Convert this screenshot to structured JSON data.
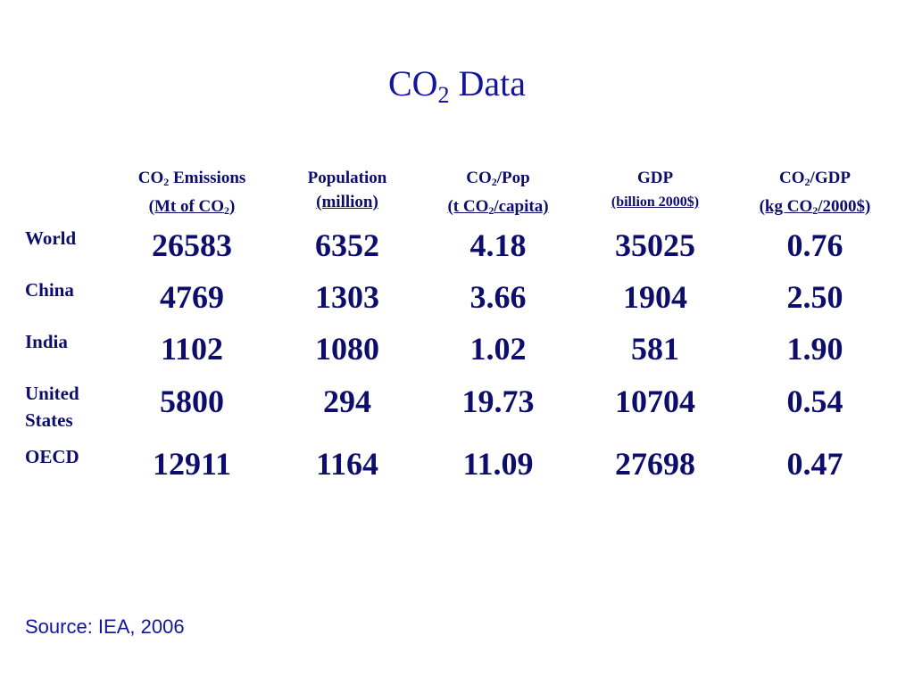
{
  "title": {
    "main": "CO",
    "sub": "2",
    "rest": " Data"
  },
  "headers": [
    {
      "l1a": "CO",
      "l1sub": "2",
      "l1b": " Emissions",
      "l2a": "(Mt of CO",
      "l2sub": "2",
      "l2b": ")"
    },
    {
      "l1a": "Population",
      "l1sub": "",
      "l1b": "",
      "l2a": "(million)",
      "l2sub": "",
      "l2b": ""
    },
    {
      "l1a": "CO",
      "l1sub": "2",
      "l1b": "/Pop",
      "l2a": "(t CO",
      "l2sub": "2",
      "l2b": "/capita)"
    },
    {
      "l1a": "GDP",
      "l1sub": "",
      "l1b": "",
      "l2a": "(billion 2000$)",
      "l2sub": "",
      "l2b": ""
    },
    {
      "l1a": "CO",
      "l1sub": "2",
      "l1b": "/GDP",
      "l2a": "(kg CO",
      "l2sub": "2",
      "l2b": "/2000$)"
    }
  ],
  "rows": [
    {
      "label": "World",
      "values": [
        "26583",
        "6352",
        "4.18",
        "35025",
        "0.76"
      ]
    },
    {
      "label": "China",
      "values": [
        "4769",
        "1303",
        "3.66",
        "1904",
        "2.50"
      ]
    },
    {
      "label": "India",
      "values": [
        "1102",
        "1080",
        "1.02",
        "581",
        "1.90"
      ]
    },
    {
      "label": "United States",
      "values": [
        "5800",
        "294",
        "19.73",
        "10704",
        "0.54"
      ]
    },
    {
      "label": "OECD",
      "values": [
        "12911",
        "1164",
        "11.09",
        "27698",
        "0.47"
      ]
    }
  ],
  "source": "Source:  IEA, 2006"
}
